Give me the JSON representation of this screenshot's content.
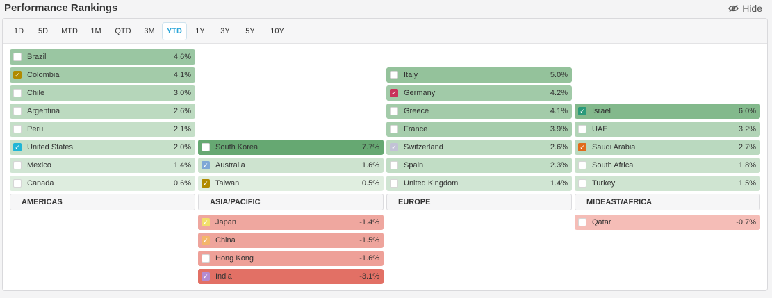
{
  "header": {
    "title": "Performance Rankings",
    "hide_label": "Hide",
    "hide_icon": "eye-off-icon"
  },
  "tabs": [
    {
      "label": "1D",
      "active": false
    },
    {
      "label": "5D",
      "active": false
    },
    {
      "label": "MTD",
      "active": false
    },
    {
      "label": "1M",
      "active": false
    },
    {
      "label": "QTD",
      "active": false
    },
    {
      "label": "3M",
      "active": false
    },
    {
      "label": "YTD",
      "active": true
    },
    {
      "label": "1Y",
      "active": false
    },
    {
      "label": "3Y",
      "active": false
    },
    {
      "label": "5Y",
      "active": false
    },
    {
      "label": "10Y",
      "active": false
    }
  ],
  "regions": [
    {
      "name": "AMERICAS",
      "positive": [
        {
          "name": "Brazil",
          "value": "4.6%",
          "pct": 4.6,
          "checked": false
        },
        {
          "name": "Colombia",
          "value": "4.1%",
          "pct": 4.1,
          "checked": true,
          "check_color": "#b08a00"
        },
        {
          "name": "Chile",
          "value": "3.0%",
          "pct": 3.0,
          "checked": false
        },
        {
          "name": "Argentina",
          "value": "2.6%",
          "pct": 2.6,
          "checked": false
        },
        {
          "name": "Peru",
          "value": "2.1%",
          "pct": 2.1,
          "checked": false
        },
        {
          "name": "United States",
          "value": "2.0%",
          "pct": 2.0,
          "checked": true,
          "check_color": "#1fb5d6"
        },
        {
          "name": "Mexico",
          "value": "1.4%",
          "pct": 1.4,
          "checked": false
        },
        {
          "name": "Canada",
          "value": "0.6%",
          "pct": 0.6,
          "checked": false
        }
      ],
      "negative": []
    },
    {
      "name": "ASIA/PACIFIC",
      "positive": [
        {
          "name": "South Korea",
          "value": "7.7%",
          "pct": 7.7,
          "checked": false
        },
        {
          "name": "Australia",
          "value": "1.6%",
          "pct": 1.6,
          "checked": true,
          "check_color": "#7fa7d6"
        },
        {
          "name": "Taiwan",
          "value": "0.5%",
          "pct": 0.5,
          "checked": true,
          "check_color": "#b08a00"
        }
      ],
      "negative": [
        {
          "name": "Japan",
          "value": "-1.4%",
          "pct": -1.4,
          "checked": true,
          "check_color": "#f2df6b"
        },
        {
          "name": "China",
          "value": "-1.5%",
          "pct": -1.5,
          "checked": true,
          "check_color": "#f4b66a"
        },
        {
          "name": "Hong Kong",
          "value": "-1.6%",
          "pct": -1.6,
          "checked": false
        },
        {
          "name": "India",
          "value": "-3.1%",
          "pct": -3.1,
          "checked": true,
          "check_color": "#b48bd0"
        }
      ]
    },
    {
      "name": "EUROPE",
      "positive": [
        {
          "name": "Italy",
          "value": "5.0%",
          "pct": 5.0,
          "checked": false
        },
        {
          "name": "Germany",
          "value": "4.2%",
          "pct": 4.2,
          "checked": true,
          "check_color": "#c8325a"
        },
        {
          "name": "Greece",
          "value": "4.1%",
          "pct": 4.1,
          "checked": false
        },
        {
          "name": "France",
          "value": "3.9%",
          "pct": 3.9,
          "checked": false
        },
        {
          "name": "Switzerland",
          "value": "2.6%",
          "pct": 2.6,
          "checked": true,
          "check_color": "#c2c2d6"
        },
        {
          "name": "Spain",
          "value": "2.3%",
          "pct": 2.3,
          "checked": false
        },
        {
          "name": "United Kingdom",
          "value": "1.4%",
          "pct": 1.4,
          "checked": false
        }
      ],
      "negative": []
    },
    {
      "name": "MIDEAST/AFRICA",
      "positive": [
        {
          "name": "Israel",
          "value": "6.0%",
          "pct": 6.0,
          "checked": true,
          "check_color": "#2a9a7a"
        },
        {
          "name": "UAE",
          "value": "3.2%",
          "pct": 3.2,
          "checked": false
        },
        {
          "name": "Saudi Arabia",
          "value": "2.7%",
          "pct": 2.7,
          "checked": true,
          "check_color": "#e06a1a"
        },
        {
          "name": "South Africa",
          "value": "1.8%",
          "pct": 1.8,
          "checked": false
        },
        {
          "name": "Turkey",
          "value": "1.5%",
          "pct": 1.5,
          "checked": false
        }
      ],
      "negative": [
        {
          "name": "Qatar",
          "value": "-0.7%",
          "pct": -0.7,
          "checked": false
        }
      ]
    }
  ]
}
